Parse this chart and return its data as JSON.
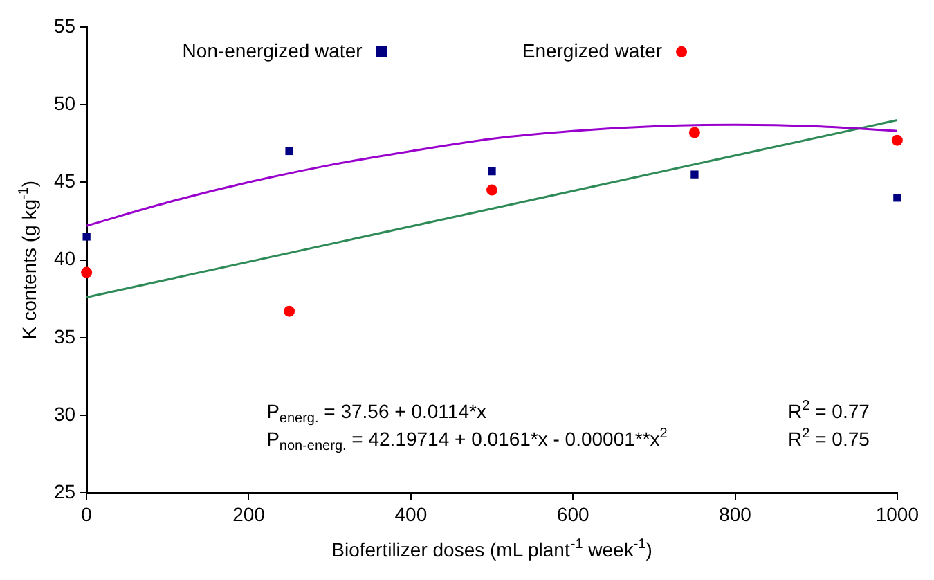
{
  "chart_data": {
    "type": "scatter",
    "xlabel": "Biofertilizer doses (mL plant$^{-1}$ week$^{-1}$)",
    "ylabel": "K contents (g kg$^{-1}$)",
    "xlim": [
      0,
      1000
    ],
    "xticks": [
      0,
      200,
      400,
      600,
      800,
      1000
    ],
    "ylim": [
      25,
      55
    ],
    "yticks": [
      25,
      30,
      35,
      40,
      45,
      50,
      55
    ],
    "grid": false,
    "legend": "top",
    "series": [
      {
        "name": "Non-energized water",
        "color": "#000080",
        "marker": "square",
        "x": [
          0,
          250,
          500,
          750,
          1000
        ],
        "values": [
          41.5,
          47.0,
          45.7,
          45.5,
          44.0
        ]
      },
      {
        "name": "Energized water",
        "color": "#ff0000",
        "marker": "circle",
        "x": [
          0,
          250,
          500,
          750,
          1000
        ],
        "values": [
          39.2,
          36.7,
          44.5,
          48.2,
          47.7
        ]
      },
      {
        "type": "line",
        "color": "#9900cc",
        "marker": "none",
        "x": [
          0,
          100,
          200,
          300,
          400,
          500,
          600,
          700,
          800,
          900,
          1000
        ],
        "values": [
          42.2,
          43.7,
          45.0,
          46.1,
          47.0,
          47.8,
          48.3,
          48.6,
          48.7,
          48.6,
          48.3
        ]
      },
      {
        "type": "line",
        "color": "#2e8b57",
        "marker": "none",
        "x": [
          0,
          1000
        ],
        "values": [
          37.6,
          49.0
        ]
      }
    ],
    "annotations": [
      "P$_{energ.}$ = 37.56 + 0.0114*x",
      "R$^{2}$ = 0.77",
      "P$_{non-energ.}$ = 42.19714 + 0.0161*x - 0.00001**x$^{2}$",
      "R$^{2}$ = 0.75"
    ]
  }
}
